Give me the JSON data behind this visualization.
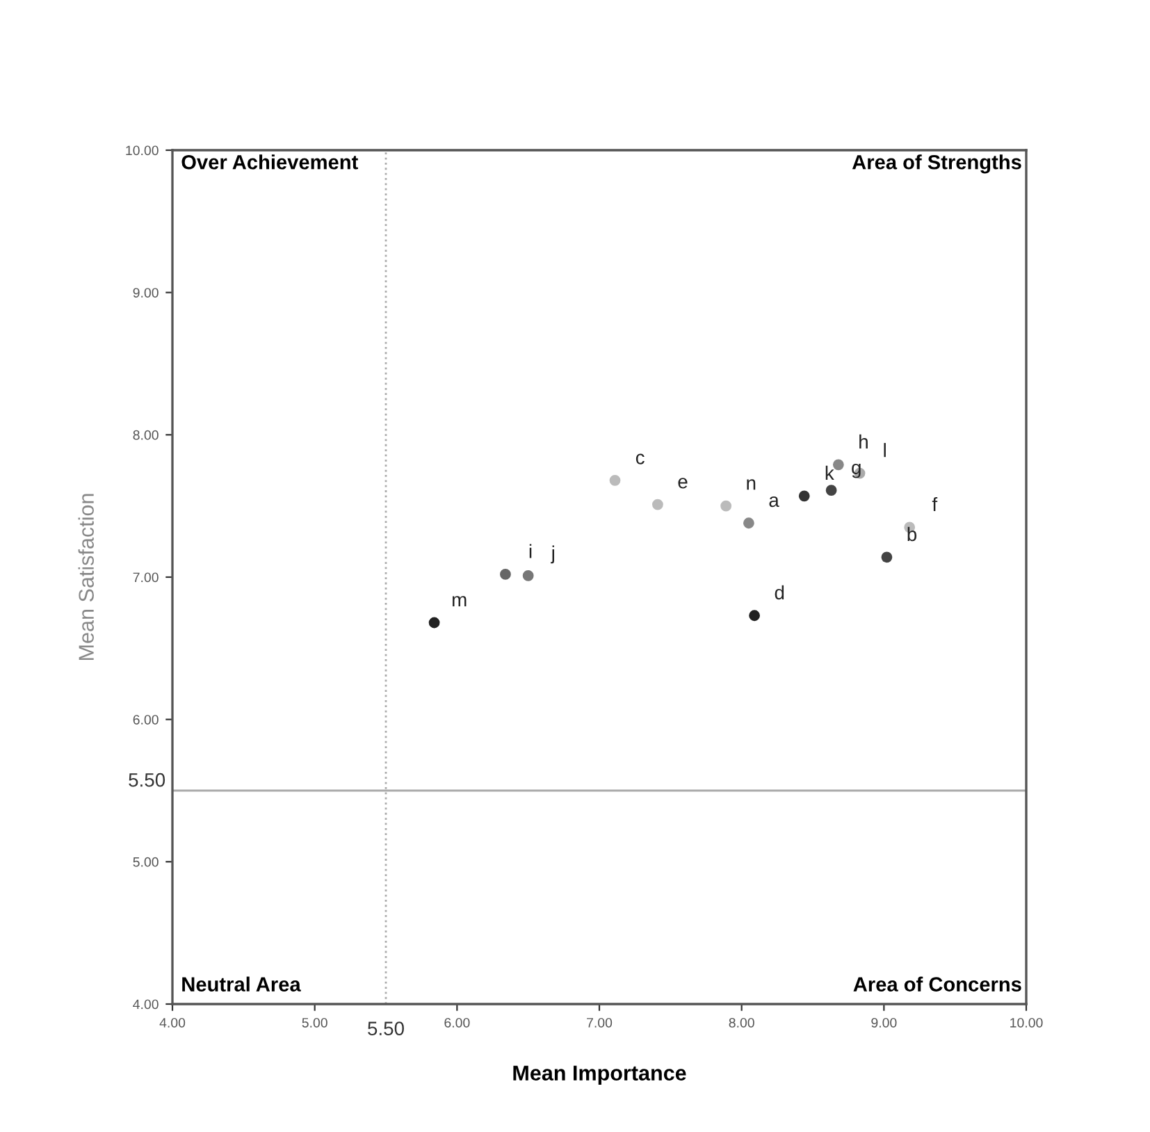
{
  "chart_data": {
    "type": "scatter",
    "xlabel": "Mean Importance",
    "ylabel": "Mean Satisfaction",
    "series": [
      {
        "x": [
          5.84,
          6.34,
          6.5,
          7.11,
          7.41,
          7.89,
          8.05,
          8.09,
          8.44,
          8.63,
          8.68,
          8.83,
          9.02,
          9.18
        ],
        "values": [
          6.68,
          7.02,
          7.01,
          7.68,
          7.51,
          7.5,
          7.38,
          6.73,
          7.57,
          7.61,
          7.79,
          7.73,
          7.14,
          7.35
        ],
        "colors": [
          "#222222",
          "#666666",
          "#777777",
          "#bbbbbb",
          "#bbbbbb",
          "#bbbbbb",
          "#888888",
          "#222222",
          "#333333",
          "#444444",
          "#888888",
          "#aaaaaa",
          "#444444",
          "#bbbbbb"
        ],
        "value_labels": [
          "m",
          "i",
          "j",
          "c",
          "e",
          "n",
          "a",
          "d",
          "k",
          "g",
          "h",
          "l",
          "b",
          "f"
        ]
      }
    ],
    "marker": "circle",
    "xlim": [
      4,
      10
    ],
    "ylim": [
      4,
      10
    ],
    "xticks": [
      {
        "value": 4,
        "label": "4.00"
      },
      {
        "value": 5,
        "label": "5.00"
      },
      {
        "value": 6,
        "label": "6.00"
      },
      {
        "value": 7,
        "label": "7.00"
      },
      {
        "value": 8,
        "label": "8.00"
      },
      {
        "value": 9,
        "label": "9.00"
      },
      {
        "value": 10,
        "label": "10.00"
      }
    ],
    "yticks": [
      {
        "value": 4,
        "label": "4.00"
      },
      {
        "value": 5,
        "label": "5.00"
      },
      {
        "value": 6,
        "label": "6.00"
      },
      {
        "value": 7,
        "label": "7.00"
      },
      {
        "value": 8,
        "label": "8.00"
      },
      {
        "value": 9,
        "label": "9.00"
      },
      {
        "value": 10,
        "label": "10.00"
      }
    ],
    "ref_lines": [
      {
        "axis": "x",
        "value": 5.5,
        "label": "5.50",
        "color": "#aaaaaa",
        "line_style": "dotted"
      },
      {
        "axis": "y",
        "value": 5.5,
        "label": "5.50",
        "color": "#aaaaaa",
        "line_style": "solid"
      }
    ],
    "annotations": [
      "Over Achievement",
      "Area of Strengths",
      "Neutral Area",
      "Area of Concerns"
    ],
    "grid": false,
    "legend": false
  }
}
